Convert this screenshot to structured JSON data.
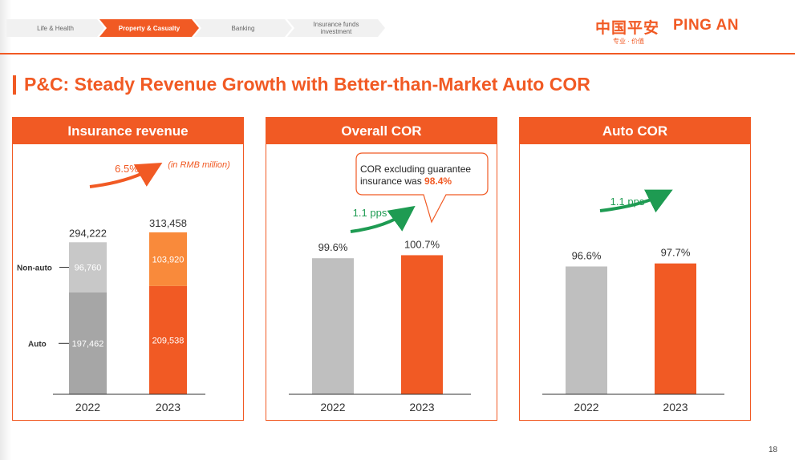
{
  "nav": {
    "items": [
      {
        "label": "Life & Health",
        "active": false
      },
      {
        "label": "Property & Casualty",
        "active": true
      },
      {
        "label": "Banking",
        "active": false
      },
      {
        "label": "Insurance funds investment",
        "active": false
      }
    ]
  },
  "logo": {
    "cn": "中国平安",
    "en": "PING AN",
    "tagline": "专业 · 价值"
  },
  "title": "P&C: Steady Revenue Growth with Better-than-Market Auto COR",
  "page_number": "18",
  "colors": {
    "accent": "#f15a24",
    "light_orange": "#f98a3b",
    "gray_dark": "#a6a6a6",
    "gray_light": "#c8c8c8",
    "gray_bar": "#bfbfbf",
    "green": "#1e9b52"
  },
  "chart_data": [
    {
      "type": "bar",
      "stacked": true,
      "title": "Insurance revenue",
      "unit_note": "(in RMB million)",
      "categories": [
        "2022",
        "2023"
      ],
      "series": [
        {
          "name": "Auto",
          "values": [
            197462,
            209538
          ],
          "labels": [
            "197,462",
            "209,538"
          ]
        },
        {
          "name": "Non-auto",
          "values": [
            96760,
            103920
          ],
          "labels": [
            "96,760",
            "103,920"
          ]
        }
      ],
      "totals": [
        294222,
        313458
      ],
      "total_labels": [
        "294,222",
        "313,458"
      ],
      "growth_label": "6.5%",
      "ylim": [
        0,
        380000
      ]
    },
    {
      "type": "bar",
      "title": "Overall COR",
      "categories": [
        "2022",
        "2023"
      ],
      "values": [
        99.6,
        100.7
      ],
      "value_labels": [
        "99.6%",
        "100.7%"
      ],
      "change_label": "1.1 pps",
      "callout": {
        "text": "COR excluding guarantee insurance was ",
        "highlight": "98.4%"
      }
    },
    {
      "type": "bar",
      "title": "Auto COR",
      "categories": [
        "2022",
        "2023"
      ],
      "values": [
        96.6,
        97.7
      ],
      "value_labels": [
        "96.6%",
        "97.7%"
      ],
      "change_label": "1.1 pps"
    }
  ]
}
